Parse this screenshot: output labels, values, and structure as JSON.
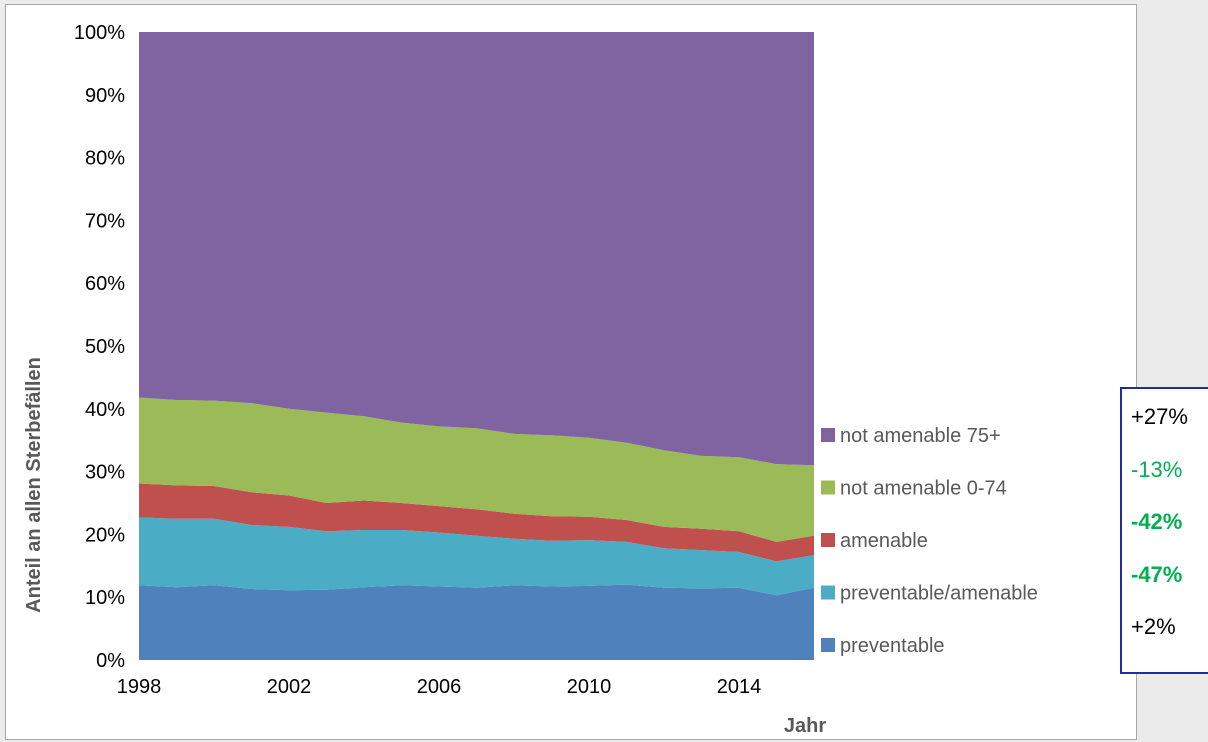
{
  "chart_data": {
    "type": "area",
    "stacked": true,
    "normalized": true,
    "x": [
      1998,
      1999,
      2000,
      2001,
      2002,
      2003,
      2004,
      2005,
      2006,
      2007,
      2008,
      2009,
      2010,
      2011,
      2012,
      2013,
      2014,
      2015,
      2016
    ],
    "xticks": [
      1998,
      2002,
      2006,
      2010,
      2014
    ],
    "xlabel": "Jahr",
    "ylabel": "Anteil an allen Sterbefällen",
    "ylim": [
      0,
      100
    ],
    "yticks": [
      0,
      10,
      20,
      30,
      40,
      50,
      60,
      70,
      80,
      90,
      100
    ],
    "ytick_labels": [
      "0%",
      "10%",
      "20%",
      "30%",
      "40%",
      "50%",
      "60%",
      "70%",
      "80%",
      "90%",
      "100%"
    ],
    "grid": false,
    "legend_position": "right",
    "series": [
      {
        "name": "preventable",
        "color": "#4f81bd",
        "values": [
          11.9,
          11.6,
          11.9,
          11.3,
          11.1,
          11.2,
          11.6,
          11.9,
          11.7,
          11.5,
          11.9,
          11.7,
          11.8,
          12.0,
          11.5,
          11.4,
          11.5,
          10.3,
          11.5
        ]
      },
      {
        "name": "preventable/amenable",
        "color": "#4bacc6",
        "values": [
          10.8,
          10.9,
          10.6,
          10.2,
          10.1,
          9.3,
          9.1,
          8.8,
          8.6,
          8.3,
          7.4,
          7.3,
          7.3,
          6.8,
          6.3,
          6.1,
          5.7,
          5.4,
          5.2
        ]
      },
      {
        "name": "amenable",
        "color": "#c0504d",
        "values": [
          5.4,
          5.3,
          5.2,
          5.2,
          5.0,
          4.5,
          4.7,
          4.3,
          4.2,
          4.2,
          4.0,
          3.9,
          3.7,
          3.5,
          3.4,
          3.4,
          3.3,
          3.1,
          3.1
        ]
      },
      {
        "name": "not amenable 0-74",
        "color": "#9bbb59",
        "values": [
          13.7,
          13.6,
          13.6,
          14.2,
          13.8,
          14.4,
          13.4,
          12.8,
          12.7,
          12.9,
          12.7,
          12.9,
          12.6,
          12.3,
          12.2,
          11.6,
          11.8,
          12.4,
          11.2
        ]
      },
      {
        "name": "not amenable 75+",
        "color": "#8064a2",
        "values": [
          58.2,
          58.6,
          58.7,
          59.1,
          60.0,
          60.6,
          61.2,
          62.2,
          62.8,
          63.1,
          64.0,
          64.2,
          64.6,
          65.4,
          66.6,
          67.5,
          67.7,
          68.8,
          69.0
        ]
      }
    ]
  },
  "changes": [
    {
      "series": "not amenable 75+",
      "text": "+27%",
      "color": "#000000",
      "bold": false
    },
    {
      "series": "not amenable 0-74",
      "text": "-13%",
      "color": "#00b050",
      "bold": false
    },
    {
      "series": "amenable",
      "text": "-42%",
      "color": "#00b050",
      "bold": true
    },
    {
      "series": "preventable/amenable",
      "text": "-47%",
      "color": "#00b050",
      "bold": true
    },
    {
      "series": "preventable",
      "text": "+2%",
      "color": "#000000",
      "bold": false
    }
  ]
}
